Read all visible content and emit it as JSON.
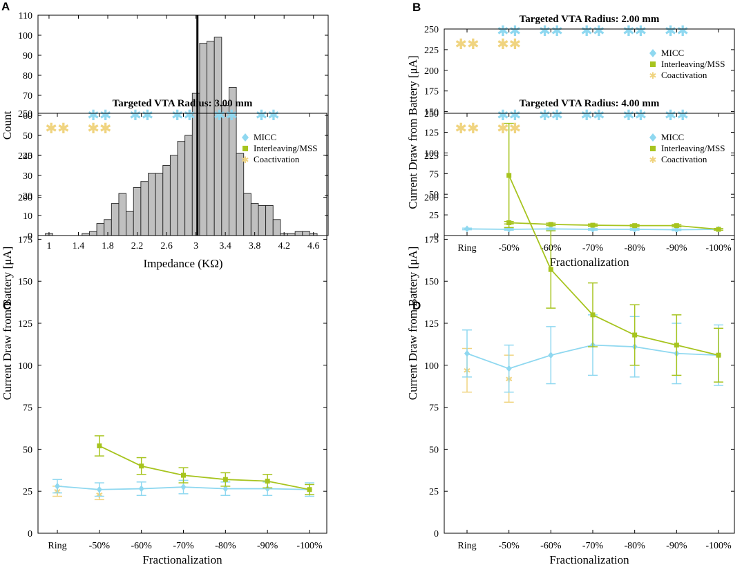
{
  "colors": {
    "micc": "#8fd8f0",
    "mss": "#a7c41f",
    "coact": "#f0d480",
    "hist_fill": "#c0c0c0",
    "median_line": "#000000"
  },
  "chart_data": [
    {
      "panel": "A",
      "type": "bar",
      "title": "",
      "xlabel": "Impedance (KΩ)",
      "ylabel": "Count",
      "xlim": [
        0.85,
        4.8
      ],
      "ylim": [
        0,
        110
      ],
      "xticks": [
        1,
        1.4,
        1.8,
        2.2,
        2.6,
        3,
        3.4,
        3.8,
        4.2,
        4.6
      ],
      "xtick_labels": [
        "1",
        "1.4",
        "1.8",
        "2.2",
        "2.6",
        "3",
        "3.4",
        "3.8",
        "4.2",
        "4.6"
      ],
      "yticks": [
        0,
        10,
        20,
        30,
        40,
        50,
        60,
        70,
        80,
        90,
        100,
        110
      ],
      "ytick_labels": [
        "0",
        "10",
        "20",
        "30",
        "40",
        "50",
        "60",
        "70",
        "80",
        "90",
        "100",
        "110"
      ],
      "bin_start": 0.95,
      "bin_width": 0.1,
      "values": [
        1,
        0,
        0,
        0,
        0,
        1,
        2,
        6,
        8,
        16,
        21,
        12,
        24,
        27,
        31,
        31,
        35,
        40,
        47,
        50,
        71,
        96,
        97,
        99,
        65,
        74,
        41,
        21,
        16,
        15,
        15,
        8,
        1,
        1,
        2,
        2,
        1
      ],
      "median": 3.02
    },
    {
      "panel": "B",
      "type": "line",
      "title": "Targeted VTA Radius: 2.00 mm",
      "xlabel": "Fractionalization",
      "ylabel": "Current Draw from Battery [μA]",
      "categories": [
        "Ring",
        "-50%",
        "-60%",
        "-70%",
        "-80%",
        "-90%",
        "-100%"
      ],
      "ylim": [
        0,
        250
      ],
      "yticks": [
        0,
        25,
        50,
        75,
        100,
        125,
        150,
        175,
        200,
        225,
        250
      ],
      "ytick_labels": [
        "0",
        "25",
        "50",
        "75",
        "100",
        "125",
        "150",
        "175",
        "200",
        "225",
        "250"
      ],
      "legend": [
        "MICC",
        "Interleaving/MSS",
        "Coactivation"
      ],
      "legend_position": "top-right",
      "series": [
        {
          "name": "MICC",
          "points": [
            [
              0,
              8,
              1
            ],
            [
              1,
              7.5,
              1
            ],
            [
              2,
              8,
              1
            ],
            [
              3,
              7.5,
              1
            ],
            [
              4,
              7.5,
              1
            ],
            [
              5,
              7,
              1
            ],
            [
              6,
              7.5,
              1
            ]
          ]
        },
        {
          "name": "Interleaving/MSS",
          "points": [
            [
              1,
              15.5,
              1.5
            ],
            [
              2,
              13.5,
              1.5
            ],
            [
              3,
              12.5,
              1.5
            ],
            [
              4,
              12,
              1.5
            ],
            [
              5,
              12,
              1.5
            ],
            [
              6,
              7.5,
              1
            ]
          ]
        },
        {
          "name": "Coactivation",
          "points": []
        }
      ],
      "significance": [
        {
          "category": 0,
          "rows": [
            "coact"
          ]
        },
        {
          "category": 1,
          "rows": [
            "micc",
            "coact"
          ]
        },
        {
          "category": 2,
          "rows": [
            "micc"
          ]
        },
        {
          "category": 3,
          "rows": [
            "micc"
          ]
        },
        {
          "category": 4,
          "rows": [
            "micc"
          ]
        },
        {
          "category": 5,
          "rows": [
            "micc"
          ]
        }
      ]
    },
    {
      "panel": "C",
      "type": "line",
      "title": "Targeted VTA Radius: 3.00 mm",
      "xlabel": "Fractionalization",
      "ylabel": "Current Draw from Battery [μA]",
      "categories": [
        "Ring",
        "-50%",
        "-60%",
        "-70%",
        "-80%",
        "-90%",
        "-100%"
      ],
      "ylim": [
        0,
        250
      ],
      "yticks": [
        0,
        25,
        50,
        75,
        100,
        125,
        150,
        175,
        200,
        225,
        250
      ],
      "ytick_labels": [
        "0",
        "25",
        "50",
        "75",
        "100",
        "125",
        "150",
        "175",
        "200",
        "225",
        "250"
      ],
      "legend": [
        "MICC",
        "Interleaving/MSS",
        "Coactivation"
      ],
      "legend_position": "top-right",
      "series": [
        {
          "name": "MICC",
          "points": [
            [
              0,
              28,
              4
            ],
            [
              1,
              26,
              4
            ],
            [
              2,
              26.5,
              4
            ],
            [
              3,
              27.5,
              4
            ],
            [
              4,
              26.5,
              4
            ],
            [
              5,
              26.5,
              4
            ],
            [
              6,
              26,
              4
            ]
          ]
        },
        {
          "name": "Interleaving/MSS",
          "points": [
            [
              1,
              52,
              6
            ],
            [
              2,
              40,
              5
            ],
            [
              3,
              34.5,
              4.5
            ],
            [
              4,
              32,
              4
            ],
            [
              5,
              31,
              4
            ],
            [
              6,
              26,
              3
            ]
          ]
        },
        {
          "name": "Coactivation",
          "points": [
            [
              0,
              25,
              3
            ],
            [
              1,
              23,
              3
            ]
          ]
        }
      ],
      "significance": [
        {
          "category": 0,
          "rows": [
            "coact"
          ]
        },
        {
          "category": 1,
          "rows": [
            "micc",
            "coact"
          ]
        },
        {
          "category": 2,
          "rows": [
            "micc"
          ]
        },
        {
          "category": 3,
          "rows": [
            "micc"
          ]
        },
        {
          "category": 4,
          "rows": [
            "micc"
          ]
        },
        {
          "category": 5,
          "rows": [
            "micc"
          ]
        }
      ]
    },
    {
      "panel": "D",
      "type": "line",
      "title": "Targeted VTA Radius: 4.00 mm",
      "xlabel": "Fractionalization",
      "ylabel": "Current Draw from Battery [μA]",
      "categories": [
        "Ring",
        "-50%",
        "-60%",
        "-70%",
        "-80%",
        "-90%",
        "-100%"
      ],
      "ylim": [
        0,
        250
      ],
      "yticks": [
        0,
        25,
        50,
        75,
        100,
        125,
        150,
        175,
        200,
        225,
        250
      ],
      "ytick_labels": [
        "0",
        "25",
        "50",
        "75",
        "100",
        "125",
        "150",
        "175",
        "200",
        "225",
        "250"
      ],
      "legend": [
        "MICC",
        "Interleaving/MSS",
        "Coactivation"
      ],
      "legend_position": "top-right",
      "series": [
        {
          "name": "MICC",
          "points": [
            [
              0,
              107,
              14
            ],
            [
              1,
              98,
              14
            ],
            [
              2,
              106,
              17
            ],
            [
              3,
              112,
              18
            ],
            [
              4,
              111,
              18
            ],
            [
              5,
              107,
              18
            ],
            [
              6,
              106,
              18
            ]
          ]
        },
        {
          "name": "Interleaving/MSS",
          "points": [
            [
              1,
              213,
              31
            ],
            [
              2,
              157,
              23
            ],
            [
              3,
              130,
              19
            ],
            [
              4,
              118,
              18
            ],
            [
              5,
              112,
              18
            ],
            [
              6,
              106,
              16
            ]
          ]
        },
        {
          "name": "Coactivation",
          "points": [
            [
              0,
              97,
              13
            ],
            [
              1,
              92,
              14
            ]
          ]
        }
      ],
      "significance": [
        {
          "category": 0,
          "rows": [
            "coact"
          ]
        },
        {
          "category": 1,
          "rows": [
            "micc",
            "coact"
          ]
        },
        {
          "category": 2,
          "rows": [
            "micc"
          ]
        },
        {
          "category": 3,
          "rows": [
            "micc"
          ]
        },
        {
          "category": 4,
          "rows": [
            "micc"
          ]
        },
        {
          "category": 5,
          "rows": [
            "micc"
          ]
        }
      ]
    }
  ]
}
